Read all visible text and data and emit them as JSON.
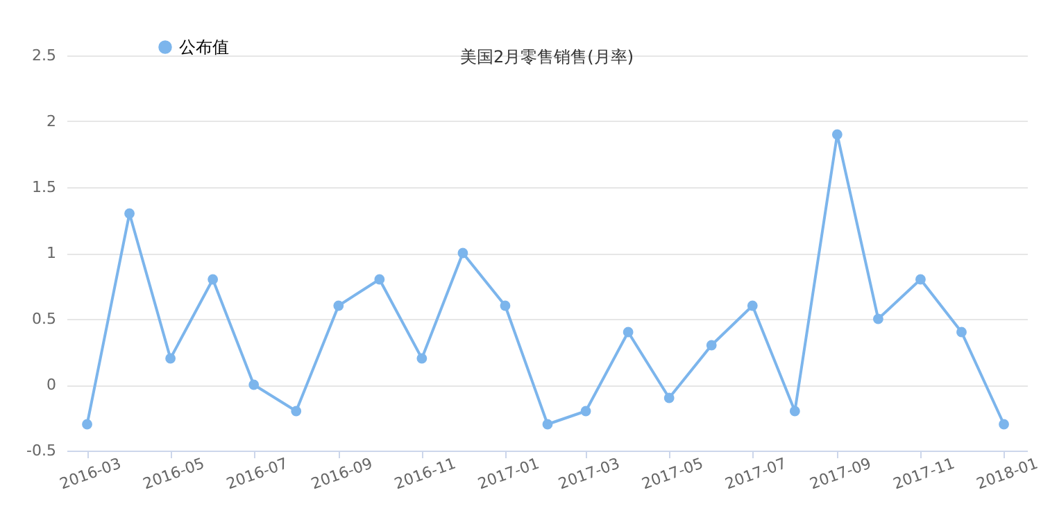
{
  "chart_data": {
    "type": "line",
    "title": "美国2月零售销售(月率)",
    "x": [
      "2016-03",
      "2016-04",
      "2016-05",
      "2016-06",
      "2016-07",
      "2016-08",
      "2016-09",
      "2016-10",
      "2016-11",
      "2016-12",
      "2017-01",
      "2017-02",
      "2017-03",
      "2017-04",
      "2017-05",
      "2017-06",
      "2017-07",
      "2017-08",
      "2017-09",
      "2017-10",
      "2017-11",
      "2017-12",
      "2018-01"
    ],
    "series": [
      {
        "name": "公布值",
        "color": "#7cb5ec",
        "values": [
          -0.3,
          1.3,
          0.2,
          0.8,
          0.0,
          -0.2,
          0.6,
          0.8,
          0.2,
          1.0,
          0.6,
          -0.3,
          -0.2,
          0.4,
          -0.1,
          0.3,
          0.6,
          -0.2,
          1.9,
          0.5,
          0.8,
          0.4,
          -0.3
        ]
      }
    ],
    "xlim": [
      "2016-02-15",
      "2018-01-18"
    ],
    "xticks": [
      "2016-03",
      "2016-05",
      "2016-07",
      "2016-09",
      "2016-11",
      "2017-01",
      "2017-03",
      "2017-05",
      "2017-07",
      "2017-09",
      "2017-11",
      "2018-01"
    ],
    "ylim": [
      -0.5,
      2.5
    ],
    "yticks": [
      -0.5,
      0,
      0.5,
      1,
      1.5,
      2,
      2.5
    ],
    "grid": "y",
    "legend": "top left",
    "marker": "circle",
    "line_style": "solid"
  }
}
